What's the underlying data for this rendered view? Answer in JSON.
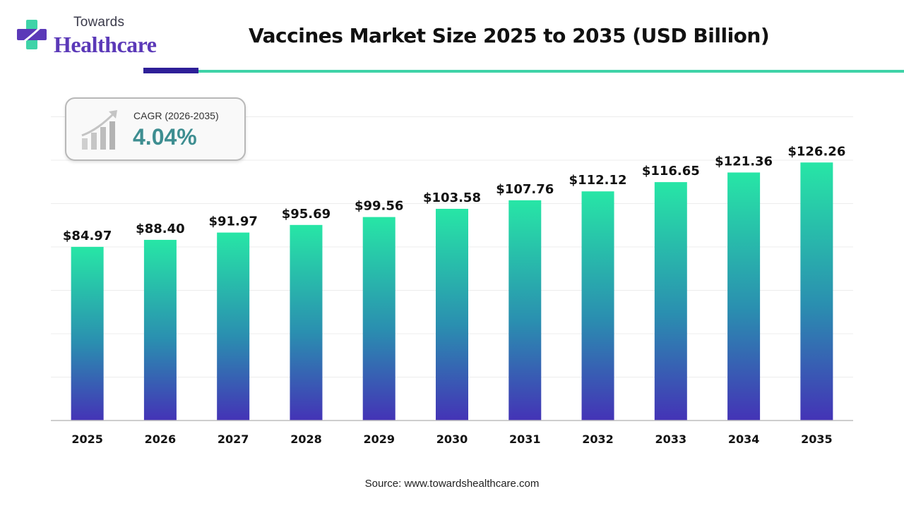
{
  "brand": {
    "towards": "Towards",
    "healthcare": "Healthcare",
    "colors": {
      "purple": "#5b39b8",
      "teal": "#3fd3a8",
      "dark_blue": "#2e1f98"
    }
  },
  "cagr": {
    "label": "CAGR (2026-2035)",
    "value": "4.04%",
    "icon": "bar-growth-icon"
  },
  "source": "Source: www.towardshealthcare.com",
  "chart_data": {
    "type": "bar",
    "title": "Vaccines Market Size 2025 to 2035 (USD Billion)",
    "xlabel": "",
    "ylabel": "",
    "categories": [
      "2025",
      "2026",
      "2027",
      "2028",
      "2029",
      "2030",
      "2031",
      "2032",
      "2033",
      "2034",
      "2035"
    ],
    "values": [
      84.97,
      88.4,
      91.97,
      95.69,
      99.56,
      103.58,
      107.76,
      112.12,
      116.65,
      121.36,
      126.26
    ],
    "value_labels": [
      "$84.97",
      "$88.40",
      "$91.97",
      "$95.69",
      "$99.56",
      "$103.58",
      "$107.76",
      "$112.12",
      "$116.65",
      "$121.36",
      "$126.26"
    ],
    "ylim": [
      0,
      145
    ],
    "grid": true,
    "bar_gradient": {
      "top": "#27e6a6",
      "middle": "#2a8fb0",
      "bottom": "#4433b6"
    }
  }
}
